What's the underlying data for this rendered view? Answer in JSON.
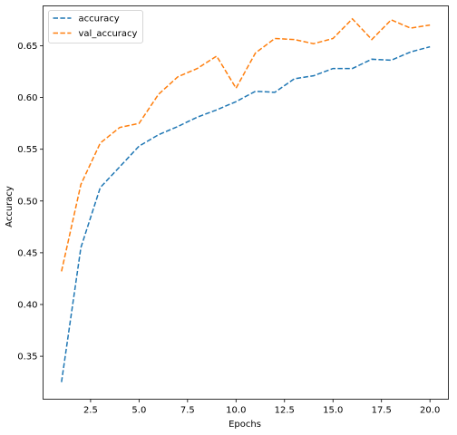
{
  "chart_data": {
    "type": "line",
    "title": "",
    "xlabel": "Epochs",
    "ylabel": "Accuracy",
    "xlim": [
      0.05,
      20.95
    ],
    "ylim": [
      0.3085,
      0.6885
    ],
    "xticks": [
      2.5,
      5.0,
      7.5,
      10.0,
      12.5,
      15.0,
      17.5,
      20.0
    ],
    "xtick_labels": [
      "2.5",
      "5.0",
      "7.5",
      "10.0",
      "12.5",
      "15.0",
      "17.5",
      "20.0"
    ],
    "yticks": [
      0.35,
      0.4,
      0.45,
      0.5,
      0.55,
      0.6,
      0.65
    ],
    "ytick_labels": [
      "0.35",
      "0.40",
      "0.45",
      "0.50",
      "0.55",
      "0.60",
      "0.65"
    ],
    "grid": false,
    "legend_position": "top-left",
    "x": [
      1,
      2,
      3,
      4,
      5,
      6,
      7,
      8,
      9,
      10,
      11,
      12,
      13,
      14,
      15,
      16,
      17,
      18,
      19,
      20
    ],
    "series": [
      {
        "name": "accuracy",
        "color": "#1f77b4",
        "dash": "dashed",
        "values": [
          0.325,
          0.455,
          0.513,
          0.533,
          0.553,
          0.564,
          0.572,
          0.581,
          0.588,
          0.596,
          0.606,
          0.605,
          0.618,
          0.621,
          0.628,
          0.628,
          0.637,
          0.636,
          0.644,
          0.649
        ]
      },
      {
        "name": "val_accuracy",
        "color": "#ff7f0e",
        "dash": "dashed",
        "values": [
          0.432,
          0.516,
          0.556,
          0.571,
          0.575,
          0.603,
          0.62,
          0.628,
          0.64,
          0.609,
          0.643,
          0.657,
          0.656,
          0.652,
          0.657,
          0.676,
          0.656,
          0.675,
          0.667,
          0.67
        ]
      }
    ]
  }
}
